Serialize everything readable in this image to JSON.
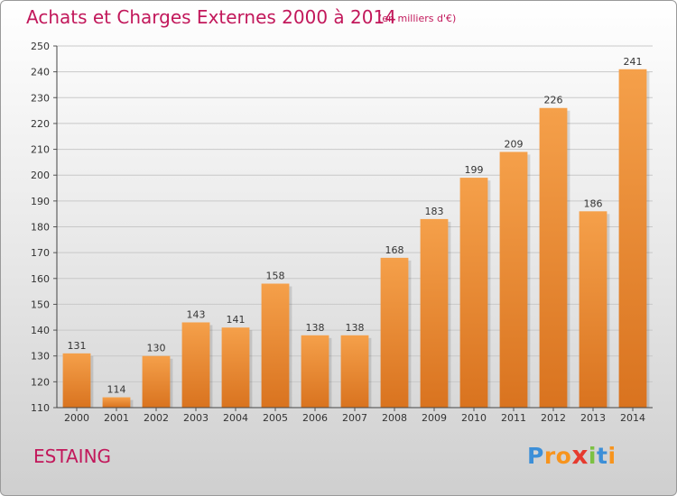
{
  "chart_data": {
    "type": "bar",
    "title": "Achats et Charges Externes 2000 à 2014",
    "subtitle": "(en milliers d'€)",
    "categories": [
      "2000",
      "2001",
      "2002",
      "2003",
      "2004",
      "2005",
      "2006",
      "2007",
      "2008",
      "2009",
      "2010",
      "2011",
      "2012",
      "2013",
      "2014"
    ],
    "values": [
      131,
      114,
      130,
      143,
      141,
      158,
      138,
      138,
      168,
      183,
      199,
      209,
      226,
      186,
      241
    ],
    "ylim": [
      110,
      250
    ],
    "yticks": [
      110,
      120,
      130,
      140,
      150,
      160,
      170,
      180,
      190,
      200,
      210,
      220,
      230,
      240,
      250
    ],
    "grid": true,
    "bar_color": "#f5a04a",
    "bar_color_dark": "#d9731f"
  },
  "footer": {
    "commune": "ESTAING",
    "logo_letters": [
      "P",
      "r",
      "o",
      "x",
      "i",
      "t",
      "i"
    ],
    "logo_colors": [
      "#3c8fd8",
      "#f7941d",
      "#f7941d",
      "#e63a2e",
      "#7cc142",
      "#3c8fd8",
      "#f7941d"
    ]
  }
}
